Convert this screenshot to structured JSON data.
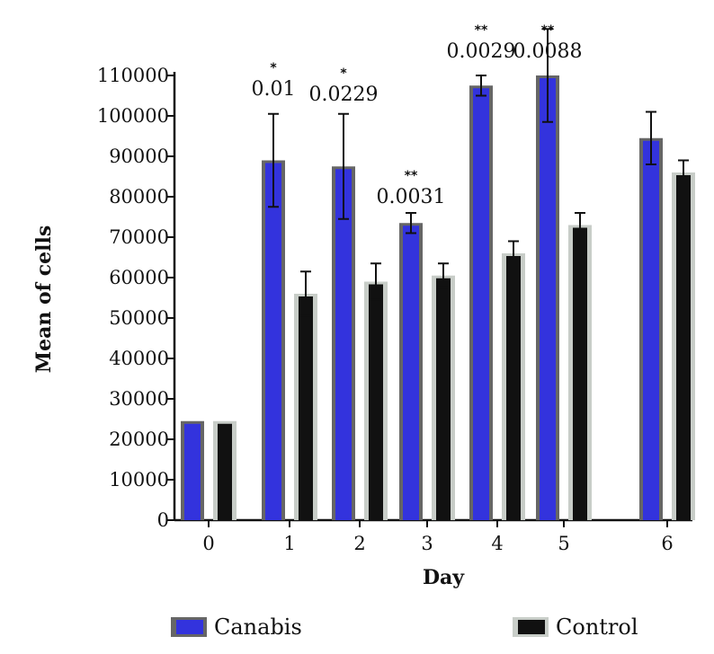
{
  "chart_data": {
    "type": "bar",
    "xlabel": "Day",
    "ylabel": "Mean of cells",
    "ylim": [
      0,
      110000
    ],
    "yticks": [
      0,
      10000,
      20000,
      30000,
      40000,
      50000,
      60000,
      70000,
      80000,
      90000,
      100000,
      110000
    ],
    "categories": [
      "0",
      "1",
      "2",
      "3",
      "4",
      "5",
      "6"
    ],
    "series": [
      {
        "name": "Canabis",
        "color": "#3333dd",
        "edge_color": "#666666",
        "values": [
          24500,
          89000,
          87500,
          73500,
          107500,
          110000,
          94500
        ],
        "errors": [
          0,
          11500,
          13000,
          2500,
          2500,
          11500,
          6500
        ]
      },
      {
        "name": "Control",
        "color": "#111111",
        "edge_color": "#c8cdc8",
        "values": [
          24500,
          56000,
          59000,
          60500,
          66000,
          73000,
          86000
        ],
        "errors": [
          0,
          5500,
          4500,
          3000,
          3000,
          3000,
          3000
        ]
      }
    ],
    "annotations": [
      {
        "category": "1",
        "stars": "*",
        "p": "0.01"
      },
      {
        "category": "2",
        "stars": "*",
        "p": "0.0229"
      },
      {
        "category": "3",
        "stars": "**",
        "p": "0.0031"
      },
      {
        "category": "4",
        "stars": "**",
        "p": "0.0029"
      },
      {
        "category": "5",
        "stars": "**",
        "p": "0.0088"
      }
    ],
    "legend_position": "bottom",
    "grid": false
  }
}
